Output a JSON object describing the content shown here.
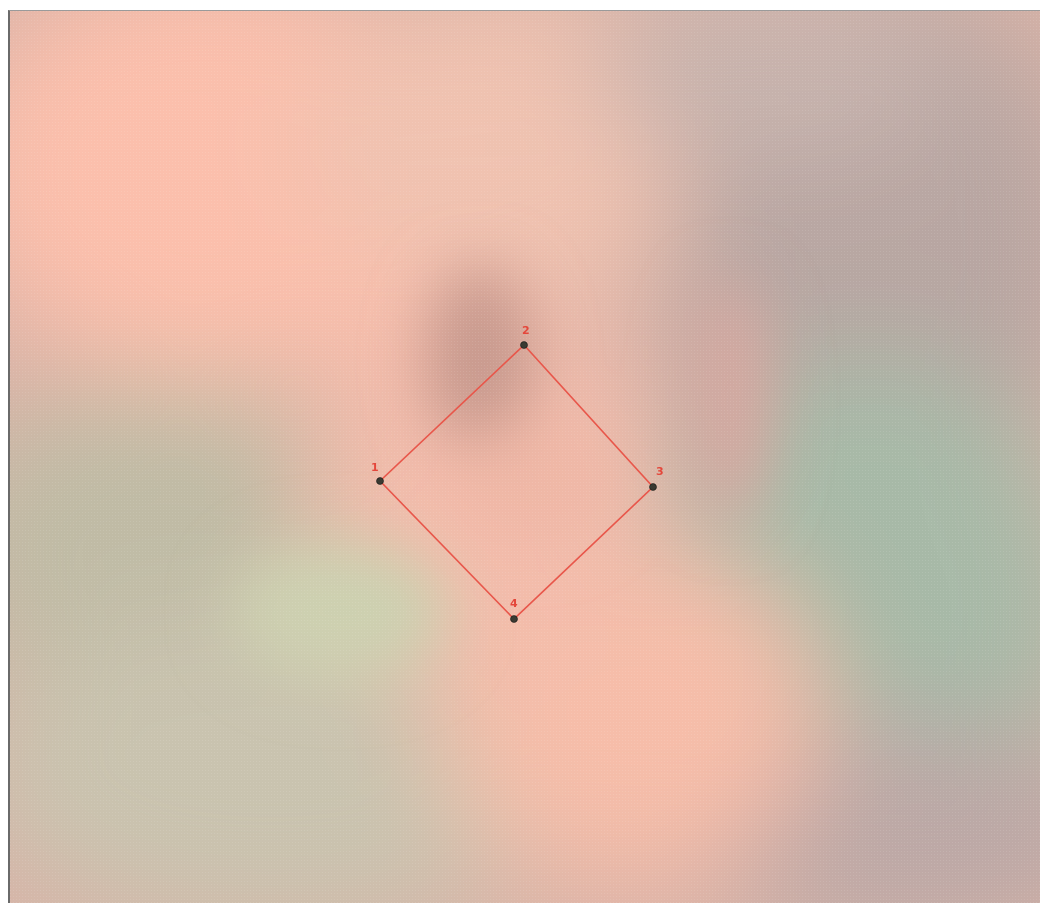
{
  "colors": {
    "outline": "#e8564a",
    "label": "#e4473b",
    "marker_fill": "#3a3a32",
    "marker_stroke": "#20201c"
  },
  "annotation": {
    "shape": "quadrilateral",
    "closed": true,
    "points": [
      {
        "label": "1"
      },
      {
        "label": "2"
      },
      {
        "label": "3"
      },
      {
        "label": "4"
      }
    ]
  }
}
